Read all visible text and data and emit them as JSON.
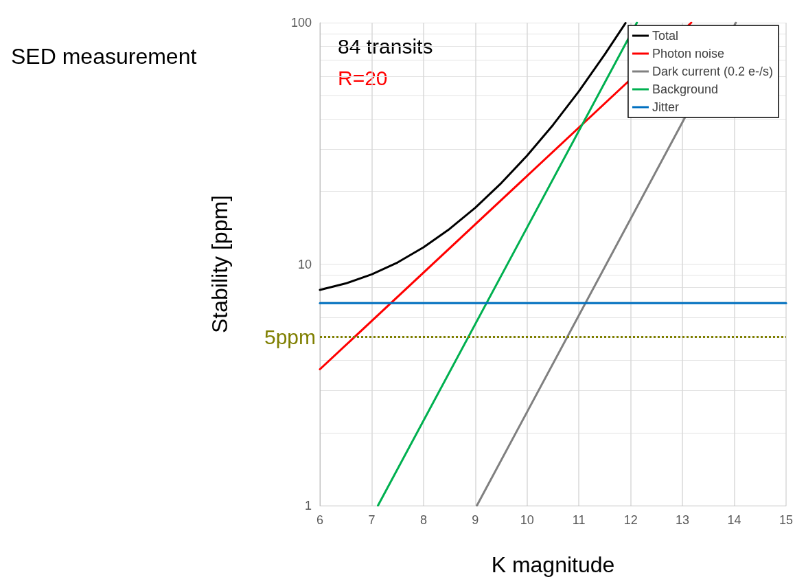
{
  "chart_data": {
    "type": "line",
    "xlabel": "K magnitude",
    "ylabel": "Stability [ppm]",
    "annotations": [
      "SED measurement",
      "84 transits",
      "R=20"
    ],
    "series": [
      {
        "name": "Total",
        "color": "#000000",
        "x": [
          6,
          6.5,
          7,
          7.5,
          8,
          8.5,
          9,
          9.5,
          10,
          10.5,
          11,
          11.5,
          11.9
        ],
        "values": [
          7.82,
          8.32,
          9.07,
          10.16,
          11.74,
          13.97,
          17.13,
          21.65,
          28.16,
          37.7,
          51.96,
          73.9,
          99.6
        ]
      },
      {
        "name": "Photon noise",
        "color": "#ff0000",
        "x": [
          6,
          13.17
        ],
        "values": [
          3.67,
          100
        ]
      },
      {
        "name": "Dark current (0.2 e-/s)",
        "color": "#808080",
        "x": [
          9.03,
          14.03
        ],
        "values": [
          1,
          100
        ]
      },
      {
        "name": "Background",
        "color": "#00b050",
        "x": [
          7.12,
          12.12
        ],
        "values": [
          1,
          100
        ]
      },
      {
        "name": "Jitter",
        "color": "#0070c0",
        "x": [
          6,
          15
        ],
        "values": [
          6.9,
          6.9
        ]
      }
    ],
    "ref_lines": [
      {
        "axis": "y",
        "value": 5,
        "label": "5ppm",
        "color": "#7f7f00",
        "line_style": "dotted"
      }
    ],
    "log": "y",
    "xlim": [
      6,
      15
    ],
    "xticks": [
      6,
      7,
      8,
      9,
      10,
      11,
      12,
      13,
      14,
      15
    ],
    "ylim": [
      1,
      100
    ],
    "yticks": [
      1,
      {
        "value": 2,
        "label": null
      },
      {
        "value": 3,
        "label": null
      },
      {
        "value": 4,
        "label": null
      },
      {
        "value": 5,
        "label": null
      },
      {
        "value": 6,
        "label": null
      },
      {
        "value": 7,
        "label": null
      },
      {
        "value": 8,
        "label": null
      },
      {
        "value": 9,
        "label": null
      },
      10,
      {
        "value": 20,
        "label": null
      },
      {
        "value": 30,
        "label": null
      },
      {
        "value": 40,
        "label": null
      },
      {
        "value": 50,
        "label": null
      },
      {
        "value": 60,
        "label": null
      },
      {
        "value": 70,
        "label": null
      },
      {
        "value": 80,
        "label": null
      },
      {
        "value": 90,
        "label": null
      },
      100
    ],
    "grid": true,
    "legend": "top right",
    "marker": "none",
    "line_style": "solid"
  }
}
